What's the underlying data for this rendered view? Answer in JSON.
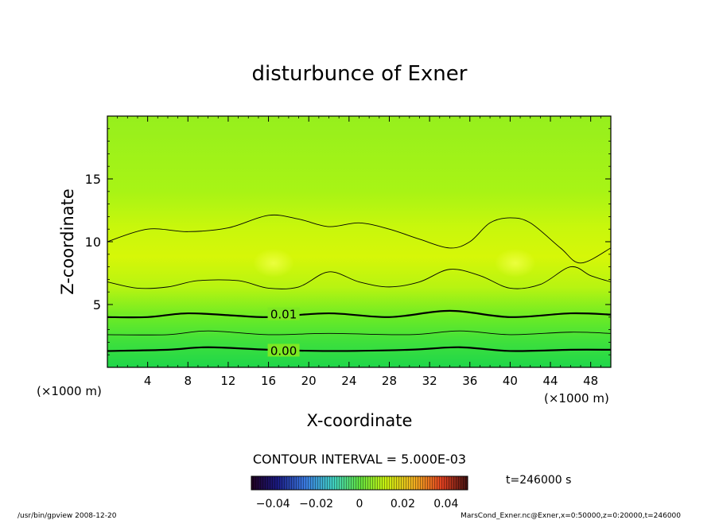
{
  "chart_data": {
    "type": "contour",
    "title": "disturbunce of Exner",
    "xlabel": "X-coordinate",
    "ylabel": "Z-coordinate",
    "x_unit_left": "(×1000 m)",
    "x_unit_right": "(×1000 m)",
    "xlim": [
      0,
      50
    ],
    "ylim": [
      0,
      20
    ],
    "x_ticks": [
      4,
      8,
      12,
      16,
      20,
      24,
      28,
      32,
      36,
      40,
      44,
      48
    ],
    "y_ticks": [
      5,
      10,
      15
    ],
    "contour_interval_label": "CONTOUR INTERVAL = 5.000E-03",
    "time_label": "t=246000 s",
    "colorbar_ticks": [
      "−0.04",
      "−0.02",
      "0",
      "0.02",
      "0.04"
    ],
    "colorbar_range": [
      -0.05,
      0.05
    ],
    "contour_labels": [
      {
        "text": "0.01",
        "x": 17.5,
        "z": 4.2
      },
      {
        "text": "0.00",
        "x": 17.5,
        "z": 1.3
      }
    ],
    "contours": [
      {
        "level": 0.0,
        "thick": true,
        "points": [
          [
            0,
            1.3
          ],
          [
            6,
            1.4
          ],
          [
            10,
            1.6
          ],
          [
            16,
            1.4
          ],
          [
            22,
            1.3
          ],
          [
            30,
            1.4
          ],
          [
            35,
            1.6
          ],
          [
            40,
            1.3
          ],
          [
            46,
            1.4
          ],
          [
            50,
            1.4
          ]
        ]
      },
      {
        "level": 0.005,
        "thick": false,
        "points": [
          [
            0,
            2.6
          ],
          [
            6,
            2.6
          ],
          [
            10,
            2.9
          ],
          [
            16,
            2.6
          ],
          [
            22,
            2.7
          ],
          [
            30,
            2.6
          ],
          [
            35,
            2.9
          ],
          [
            40,
            2.6
          ],
          [
            46,
            2.8
          ],
          [
            50,
            2.7
          ]
        ]
      },
      {
        "level": 0.01,
        "thick": true,
        "points": [
          [
            0,
            4.0
          ],
          [
            4,
            4.0
          ],
          [
            8,
            4.3
          ],
          [
            13,
            4.1
          ],
          [
            16,
            4.0
          ],
          [
            22,
            4.3
          ],
          [
            28,
            4.0
          ],
          [
            34,
            4.5
          ],
          [
            40,
            4.0
          ],
          [
            46,
            4.3
          ],
          [
            50,
            4.2
          ]
        ]
      },
      {
        "level": 0.015,
        "thick": false,
        "points": [
          [
            0,
            6.8
          ],
          [
            3,
            6.3
          ],
          [
            6,
            6.4
          ],
          [
            9,
            6.9
          ],
          [
            13,
            6.9
          ],
          [
            16,
            6.3
          ],
          [
            19,
            6.4
          ],
          [
            22,
            7.6
          ],
          [
            25,
            6.8
          ],
          [
            28,
            6.4
          ],
          [
            31,
            6.8
          ],
          [
            34,
            7.8
          ],
          [
            37,
            7.3
          ],
          [
            40,
            6.3
          ],
          [
            43,
            6.6
          ],
          [
            46,
            8.0
          ],
          [
            48,
            7.3
          ],
          [
            50,
            6.8
          ]
        ]
      },
      {
        "level": 0.015,
        "thick": false,
        "points": [
          [
            0,
            10.0
          ],
          [
            4,
            11.0
          ],
          [
            8,
            10.8
          ],
          [
            12,
            11.1
          ],
          [
            16,
            12.1
          ],
          [
            19,
            11.8
          ],
          [
            22,
            11.2
          ],
          [
            25,
            11.5
          ],
          [
            28,
            11.0
          ],
          [
            31,
            10.2
          ],
          [
            34,
            9.5
          ],
          [
            36,
            10.0
          ],
          [
            38,
            11.5
          ],
          [
            40,
            11.9
          ],
          [
            42,
            11.5
          ],
          [
            45,
            9.5
          ],
          [
            47,
            8.3
          ],
          [
            50,
            9.5
          ]
        ]
      }
    ],
    "highlights": [
      {
        "x": 16.5,
        "z": 8.3
      },
      {
        "x": 40.5,
        "z": 8.3
      }
    ]
  },
  "footer": {
    "left": "/usr/bin/gpview   2008-12-20",
    "right": "MarsCond_Exner.nc@Exner,x=0:50000,z=0:20000,t=246000"
  }
}
